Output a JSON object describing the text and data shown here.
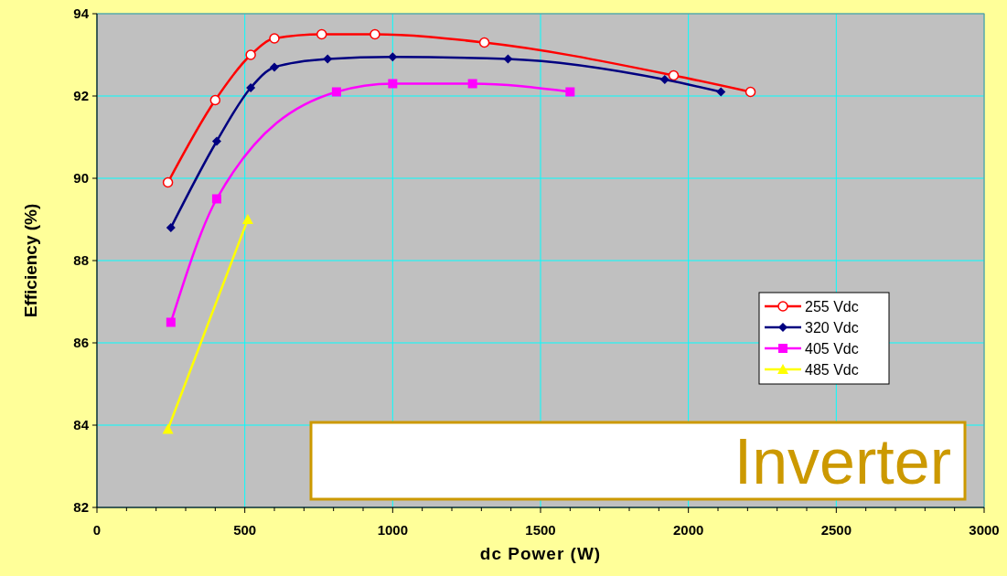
{
  "chart_data": {
    "type": "line",
    "xlabel": "dc Power (W)",
    "ylabel": "Efficiency (%)",
    "xlim": [
      0,
      3000
    ],
    "xticks": [
      0,
      500,
      1000,
      1500,
      2000,
      2500,
      3000
    ],
    "ylim": [
      82,
      94
    ],
    "yticks": [
      82,
      84,
      86,
      88,
      90,
      92,
      94
    ],
    "grid": true,
    "legend": "right",
    "annotations": [
      "Inverter"
    ],
    "series": [
      {
        "name": "255 Vdc",
        "color": "#ff0000",
        "marker": "circle",
        "x": [
          240,
          400,
          520,
          600,
          760,
          940,
          1310,
          1950,
          2210
        ],
        "values": [
          89.9,
          91.9,
          93.0,
          93.4,
          93.5,
          93.5,
          93.3,
          92.5,
          92.1
        ]
      },
      {
        "name": "320 Vdc",
        "color": "#000080",
        "marker": "diamond",
        "x": [
          250,
          405,
          520,
          600,
          780,
          1000,
          1390,
          1920,
          2110
        ],
        "values": [
          88.8,
          90.9,
          92.2,
          92.7,
          92.9,
          92.95,
          92.9,
          92.4,
          92.1
        ]
      },
      {
        "name": "405 Vdc",
        "color": "#ff00ff",
        "marker": "square",
        "x": [
          250,
          405,
          810,
          1000,
          1270,
          1600
        ],
        "values": [
          86.5,
          89.5,
          92.1,
          92.3,
          92.3,
          92.1
        ]
      },
      {
        "name": "485 Vdc",
        "color": "#ffff00",
        "marker": "triangle",
        "x": [
          240,
          510
        ],
        "values": [
          83.9,
          89.0
        ]
      }
    ]
  }
}
